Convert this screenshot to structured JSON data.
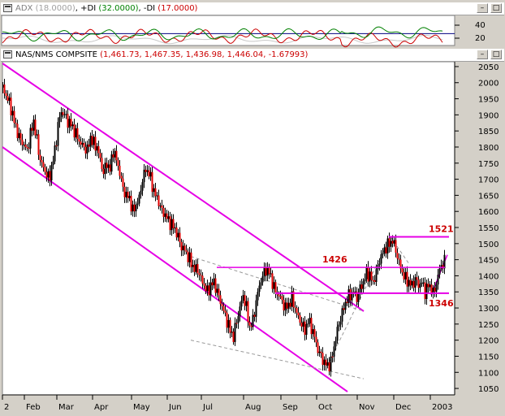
{
  "adx_panel": {
    "title_prefix": "ADX",
    "adx_value": "(18.0000)",
    "plus_di_label": "+DI",
    "plus_di_value": "(32.0000)",
    "minus_di_label": "-DI",
    "minus_di_value": "(17.0000)",
    "axis_ticks": [
      "40",
      "20"
    ],
    "colors": {
      "adx": "#c8c8c8",
      "plus_di": "#008000",
      "minus_di": "#cc0000",
      "ref_line": "#000080"
    }
  },
  "price_panel": {
    "title": "NAS/NMS COMPSITE",
    "ohlc": "(1,461.73, 1,467.35, 1,436.98, 1,446.04, -1.67993)",
    "title_color": "#cc0000"
  },
  "window_buttons": {
    "minimize": "–",
    "maximize": "□"
  },
  "chart_data": {
    "type": "candlestick",
    "x_labels": [
      "2",
      "Feb",
      "Mar",
      "Apr",
      "May",
      "Jun",
      "Jul",
      "Aug",
      "Sep",
      "Oct",
      "Nov",
      "Dec",
      "2003"
    ],
    "y_ticks": [
      2050,
      2000,
      1950,
      1900,
      1850,
      1800,
      1750,
      1700,
      1650,
      1600,
      1550,
      1500,
      1450,
      1400,
      1350,
      1300,
      1250,
      1200,
      1150,
      1100,
      1050
    ],
    "ylim": [
      1030,
      2065
    ],
    "close_path": [
      [
        0,
        1985
      ],
      [
        4,
        1960
      ],
      [
        9,
        1930
      ],
      [
        15,
        1870
      ],
      [
        20,
        1830
      ],
      [
        25,
        1810
      ],
      [
        30,
        1790
      ],
      [
        34,
        1840
      ],
      [
        38,
        1880
      ],
      [
        42,
        1820
      ],
      [
        45,
        1770
      ],
      [
        49,
        1740
      ],
      [
        53,
        1720
      ],
      [
        57,
        1700
      ],
      [
        61,
        1750
      ],
      [
        65,
        1800
      ],
      [
        68,
        1870
      ],
      [
        72,
        1910
      ],
      [
        76,
        1900
      ],
      [
        80,
        1880
      ],
      [
        84,
        1870
      ],
      [
        88,
        1850
      ],
      [
        92,
        1830
      ],
      [
        96,
        1810
      ],
      [
        100,
        1800
      ],
      [
        104,
        1790
      ],
      [
        108,
        1830
      ],
      [
        112,
        1810
      ],
      [
        116,
        1800
      ],
      [
        120,
        1760
      ],
      [
        124,
        1720
      ],
      [
        128,
        1750
      ],
      [
        132,
        1730
      ],
      [
        136,
        1790
      ],
      [
        140,
        1760
      ],
      [
        144,
        1720
      ],
      [
        148,
        1670
      ],
      [
        152,
        1650
      ],
      [
        156,
        1640
      ],
      [
        160,
        1600
      ],
      [
        164,
        1620
      ],
      [
        168,
        1640
      ],
      [
        172,
        1700
      ],
      [
        176,
        1730
      ],
      [
        180,
        1720
      ],
      [
        184,
        1680
      ],
      [
        188,
        1650
      ],
      [
        192,
        1630
      ],
      [
        196,
        1600
      ],
      [
        200,
        1590
      ],
      [
        204,
        1570
      ],
      [
        208,
        1560
      ],
      [
        212,
        1545
      ],
      [
        216,
        1520
      ],
      [
        220,
        1490
      ],
      [
        224,
        1480
      ],
      [
        228,
        1460
      ],
      [
        232,
        1440
      ],
      [
        236,
        1420
      ],
      [
        240,
        1420
      ],
      [
        244,
        1390
      ],
      [
        248,
        1370
      ],
      [
        252,
        1350
      ],
      [
        256,
        1370
      ],
      [
        260,
        1380
      ],
      [
        264,
        1350
      ],
      [
        268,
        1320
      ],
      [
        272,
        1290
      ],
      [
        276,
        1260
      ],
      [
        280,
        1230
      ],
      [
        284,
        1210
      ],
      [
        288,
        1260
      ],
      [
        292,
        1300
      ],
      [
        296,
        1340
      ],
      [
        300,
        1300
      ],
      [
        304,
        1240
      ],
      [
        308,
        1260
      ],
      [
        312,
        1320
      ],
      [
        316,
        1370
      ],
      [
        320,
        1400
      ],
      [
        324,
        1420
      ],
      [
        328,
        1410
      ],
      [
        332,
        1380
      ],
      [
        336,
        1350
      ],
      [
        340,
        1340
      ],
      [
        344,
        1320
      ],
      [
        348,
        1300
      ],
      [
        352,
        1310
      ],
      [
        356,
        1330
      ],
      [
        360,
        1300
      ],
      [
        364,
        1270
      ],
      [
        368,
        1250
      ],
      [
        372,
        1230
      ],
      [
        376,
        1260
      ],
      [
        380,
        1240
      ],
      [
        384,
        1210
      ],
      [
        388,
        1170
      ],
      [
        392,
        1150
      ],
      [
        396,
        1130
      ],
      [
        400,
        1120
      ],
      [
        404,
        1130
      ],
      [
        408,
        1180
      ],
      [
        412,
        1230
      ],
      [
        416,
        1270
      ],
      [
        420,
        1300
      ],
      [
        424,
        1330
      ],
      [
        428,
        1340
      ],
      [
        432,
        1350
      ],
      [
        436,
        1330
      ],
      [
        440,
        1360
      ],
      [
        444,
        1380
      ],
      [
        448,
        1410
      ],
      [
        452,
        1400
      ],
      [
        456,
        1380
      ],
      [
        460,
        1410
      ],
      [
        464,
        1450
      ],
      [
        468,
        1470
      ],
      [
        472,
        1490
      ],
      [
        476,
        1500
      ],
      [
        480,
        1510
      ],
      [
        484,
        1480
      ],
      [
        488,
        1440
      ],
      [
        492,
        1410
      ],
      [
        496,
        1390
      ],
      [
        500,
        1380
      ],
      [
        504,
        1370
      ],
      [
        508,
        1390
      ],
      [
        512,
        1370
      ],
      [
        516,
        1380
      ],
      [
        520,
        1350
      ],
      [
        524,
        1370
      ],
      [
        528,
        1360
      ],
      [
        531,
        1340
      ],
      [
        534,
        1380
      ],
      [
        538,
        1420
      ],
      [
        542,
        1440
      ],
      [
        545,
        1446
      ]
    ],
    "annotations": [
      {
        "text": "1521",
        "value": 1521
      },
      {
        "text": "1426",
        "value": 1426
      },
      {
        "text": "1346",
        "value": 1346
      }
    ],
    "trendline_color": "#e600e6",
    "label_color": "#cc0000"
  }
}
